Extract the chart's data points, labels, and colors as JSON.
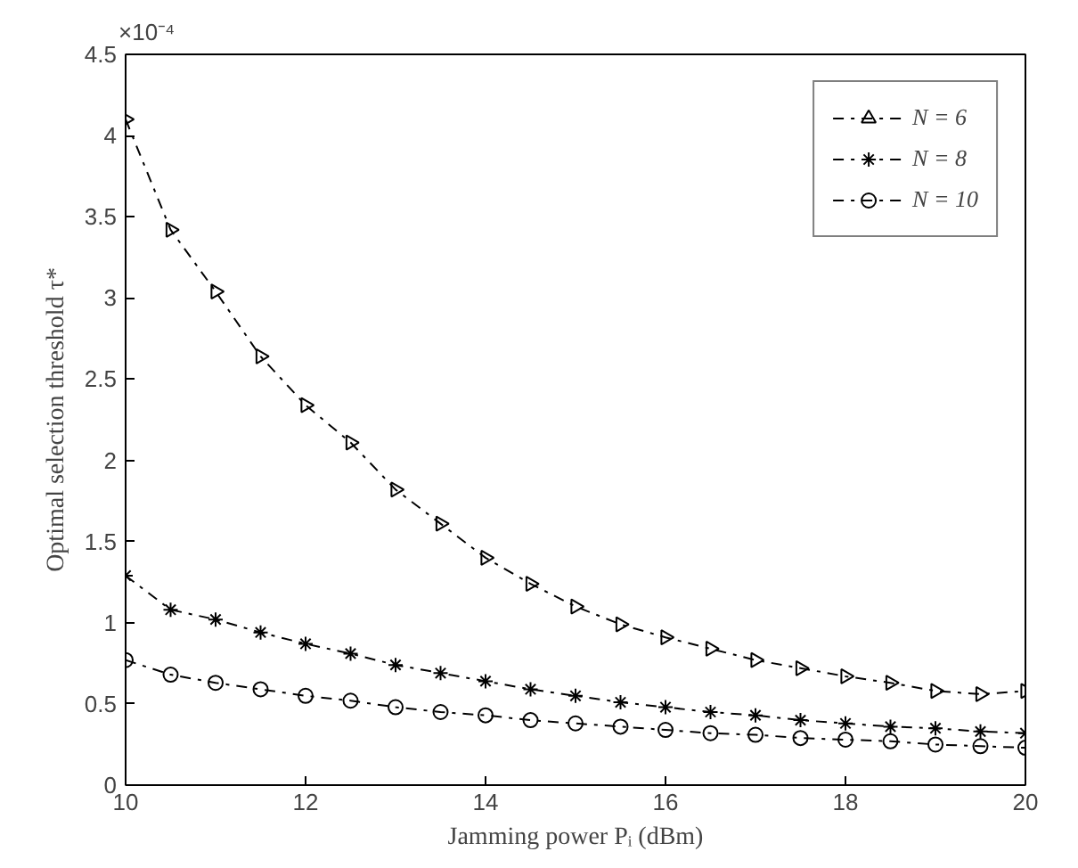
{
  "chart_data": {
    "type": "line",
    "xlabel": "Jamming power Pᵢ (dBm)",
    "ylabel": "Optimal selection threshold τ*",
    "annotations": [
      "×10⁻⁴"
    ],
    "x": [
      10,
      10.5,
      11,
      11.5,
      12,
      12.5,
      13,
      13.5,
      14,
      14.5,
      15,
      15.5,
      16,
      16.5,
      17,
      17.5,
      18,
      18.5,
      19,
      19.5,
      20
    ],
    "series": [
      {
        "name": "N = 6",
        "color": "#000000",
        "marker": "triangle",
        "values": [
          4.1,
          3.42,
          3.04,
          2.64,
          2.34,
          2.11,
          1.82,
          1.61,
          1.4,
          1.24,
          1.1,
          0.99,
          0.91,
          0.84,
          0.77,
          0.72,
          0.67,
          0.63,
          0.58,
          0.56,
          0.58
        ]
      },
      {
        "name": "N = 8",
        "color": "#000000",
        "marker": "cross",
        "values": [
          1.29,
          1.08,
          1.02,
          0.94,
          0.87,
          0.81,
          0.74,
          0.69,
          0.64,
          0.59,
          0.55,
          0.51,
          0.48,
          0.45,
          0.43,
          0.4,
          0.38,
          0.36,
          0.35,
          0.33,
          0.32
        ]
      },
      {
        "name": "N = 10",
        "color": "#000000",
        "marker": "circle",
        "values": [
          0.77,
          0.68,
          0.63,
          0.59,
          0.55,
          0.52,
          0.48,
          0.45,
          0.43,
          0.4,
          0.38,
          0.36,
          0.34,
          0.32,
          0.31,
          0.29,
          0.28,
          0.27,
          0.25,
          0.24,
          0.23
        ]
      }
    ],
    "xlim": [
      10,
      20
    ],
    "xticks": [
      10,
      12,
      14,
      16,
      18,
      20
    ],
    "ylim": [
      0,
      4.5
    ],
    "yticks": [
      0,
      0.5,
      1,
      1.5,
      2,
      2.5,
      3,
      3.5,
      4,
      4.5
    ],
    "grid": false,
    "legend": "top right",
    "line_style": "dashed"
  }
}
